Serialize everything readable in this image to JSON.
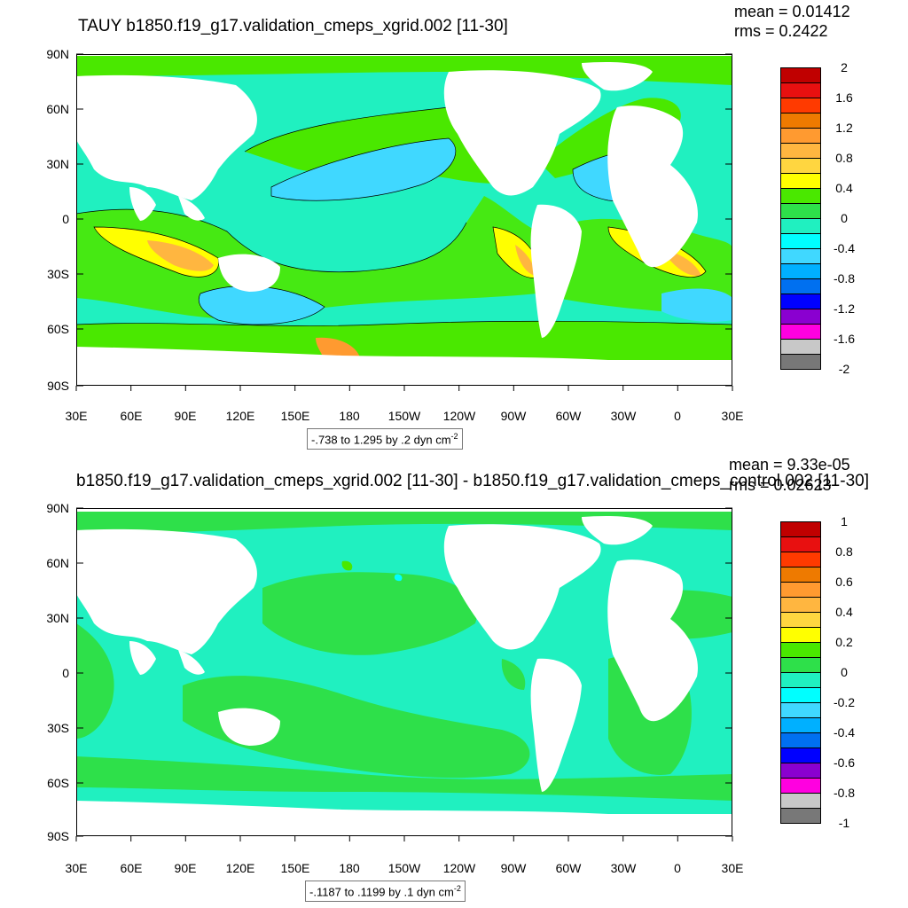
{
  "panels": [
    {
      "title": "TAUY b1850.f19_g17.validation_cmeps_xgrid.002 [11-30]",
      "mean": "mean = 0.01412",
      "rms": "rms = 0.2422",
      "lat_labels": [
        "90N",
        "60N",
        "30N",
        "0",
        "30S",
        "60S",
        "90S"
      ],
      "lon_labels": [
        "30E",
        "60E",
        "90E",
        "120E",
        "150E",
        "180",
        "150W",
        "120W",
        "90W",
        "60W",
        "30W",
        "0",
        "30E"
      ],
      "contour_note": "-.738 to 1.295 by .2 dyn cm",
      "contour_note_sup": "-2",
      "colorbar_labels": [
        "2",
        "1.6",
        "1.2",
        "0.8",
        "0.4",
        "0",
        "-0.4",
        "-0.8",
        "-1.2",
        "-1.6",
        "-2"
      ],
      "colors": [
        "#c00000",
        "#e81010",
        "#ff3a00",
        "#ee7a00",
        "#ff9a30",
        "#ffb640",
        "#ffd640",
        "#ffff00",
        "#4ae800",
        "#2ee04a",
        "#20f0c0",
        "#00ffff",
        "#40d8ff",
        "#00b0ff",
        "#0070f0",
        "#0000ff",
        "#8a00d0",
        "#ff00e0",
        "#c8c8c8",
        "#787878"
      ]
    },
    {
      "title": "b1850.f19_g17.validation_cmeps_xgrid.002 [11-30] - b1850.f19_g17.validation_cmeps_control.002 [11-30]",
      "mean": "mean = 9.33e-05",
      "rms": "rms = 0.02623",
      "lat_labels": [
        "90N",
        "60N",
        "30N",
        "0",
        "30S",
        "60S",
        "90S"
      ],
      "lon_labels": [
        "30E",
        "60E",
        "90E",
        "120E",
        "150E",
        "180",
        "150W",
        "120W",
        "90W",
        "60W",
        "30W",
        "0",
        "30E"
      ],
      "contour_note": "-.1187 to .1199 by .1 dyn cm",
      "contour_note_sup": "-2",
      "colorbar_labels": [
        "1",
        "0.8",
        "0.6",
        "0.4",
        "0.2",
        "0",
        "-0.2",
        "-0.4",
        "-0.6",
        "-0.8",
        "-1"
      ],
      "colors": [
        "#c00000",
        "#e81010",
        "#ff3a00",
        "#ee7a00",
        "#ff9a30",
        "#ffb640",
        "#ffd640",
        "#ffff00",
        "#4ae800",
        "#2ee04a",
        "#20f0c0",
        "#00ffff",
        "#40d8ff",
        "#00b0ff",
        "#0070f0",
        "#0000ff",
        "#8a00d0",
        "#ff00e0",
        "#c8c8c8",
        "#787878"
      ]
    }
  ]
}
